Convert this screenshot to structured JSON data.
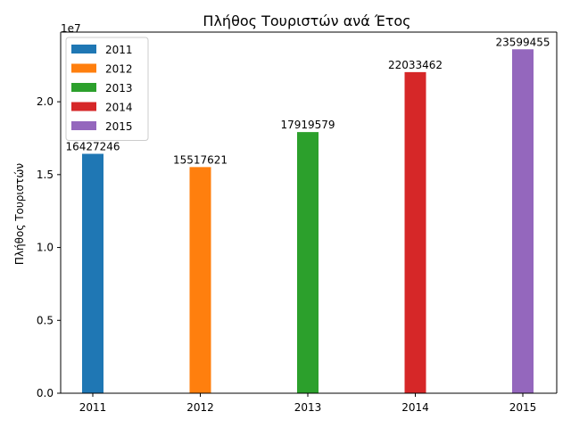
{
  "chart_data": {
    "type": "bar",
    "title": "Πλήθος Τουριστών ανά Έτος",
    "xlabel": "",
    "ylabel": "Πλήθος Τουριστών",
    "y_offset_label": "1e7",
    "y_scale_divisor": 10000000,
    "ylim": [
      0,
      24779428
    ],
    "yticks": [
      0.0,
      0.5,
      1.0,
      1.5,
      2.0
    ],
    "ytick_labels": [
      "0.0",
      "0.5",
      "1.0",
      "1.5",
      "2.0"
    ],
    "categories": [
      "2011",
      "2012",
      "2013",
      "2014",
      "2015"
    ],
    "series": [
      {
        "name": "2011",
        "color": "#1f77b4",
        "values": [
          16427246,
          null,
          null,
          null,
          null
        ]
      },
      {
        "name": "2012",
        "color": "#ff7f0e",
        "values": [
          null,
          15517621,
          null,
          null,
          null
        ]
      },
      {
        "name": "2013",
        "color": "#2ca02c",
        "values": [
          null,
          null,
          17919579,
          null,
          null
        ]
      },
      {
        "name": "2014",
        "color": "#d62728",
        "values": [
          null,
          null,
          null,
          22033462,
          null
        ]
      },
      {
        "name": "2015",
        "color": "#9467bd",
        "values": [
          null,
          null,
          null,
          null,
          23599455
        ]
      }
    ],
    "data_labels": [
      "16427246",
      "15517621",
      "17919579",
      "22033462",
      "23599455"
    ],
    "grid": false,
    "legend": {
      "position": "top-left",
      "entries": [
        "2011",
        "2012",
        "2013",
        "2014",
        "2015"
      ]
    }
  }
}
